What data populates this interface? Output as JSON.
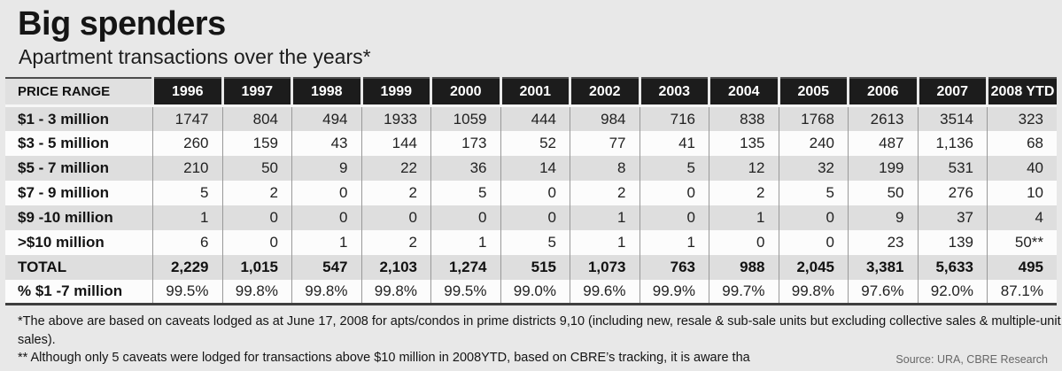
{
  "chart_data": {
    "type": "table",
    "title": "Big spenders",
    "subtitle": "Apartment transactions over the years*",
    "columns": [
      "PRICE RANGE",
      "1996",
      "1997",
      "1998",
      "1999",
      "2000",
      "2001",
      "2002",
      "2003",
      "2004",
      "2005",
      "2006",
      "2007",
      "2008 YTD"
    ],
    "rows": [
      {
        "label": "$1 - 3 million",
        "values": [
          "1747",
          "804",
          "494",
          "1933",
          "1059",
          "444",
          "984",
          "716",
          "838",
          "1768",
          "2613",
          "3514",
          "323"
        ]
      },
      {
        "label": "$3 - 5 million",
        "values": [
          "260",
          "159",
          "43",
          "144",
          "173",
          "52",
          "77",
          "41",
          "135",
          "240",
          "487",
          "1,136",
          "68"
        ]
      },
      {
        "label": "$5 - 7 million",
        "values": [
          "210",
          "50",
          "9",
          "22",
          "36",
          "14",
          "8",
          "5",
          "12",
          "32",
          "199",
          "531",
          "40"
        ]
      },
      {
        "label": "$7 - 9 million",
        "values": [
          "5",
          "2",
          "0",
          "2",
          "5",
          "0",
          "2",
          "0",
          "2",
          "5",
          "50",
          "276",
          "10"
        ]
      },
      {
        "label": "$9 -10 million",
        "values": [
          "1",
          "0",
          "0",
          "0",
          "0",
          "0",
          "1",
          "0",
          "1",
          "0",
          "9",
          "37",
          "4"
        ]
      },
      {
        "label": ">$10 million",
        "values": [
          "6",
          "0",
          "1",
          "2",
          "1",
          "5",
          "1",
          "1",
          "0",
          "0",
          "23",
          "139",
          "50**"
        ]
      },
      {
        "label": "TOTAL",
        "bold": true,
        "values": [
          "2,229",
          "1,015",
          "547",
          "2,103",
          "1,274",
          "515",
          "1,073",
          "763",
          "988",
          "2,045",
          "3,381",
          "5,633",
          "495"
        ]
      },
      {
        "label": "% $1 -7 million",
        "values": [
          "99.5%",
          "99.8%",
          "99.8%",
          "99.8%",
          "99.5%",
          "99.0%",
          "99.6%",
          "99.9%",
          "99.7%",
          "99.8%",
          "97.6%",
          "92.0%",
          "87.1%"
        ]
      }
    ],
    "footnotes": [
      "*The above are based on caveats lodged as at June 17, 2008 for apts/condos in prime districts 9,10 (including new, resale & sub-sale units but excluding collective sales & multiple-unit sales).",
      "** Although only 5 caveats were lodged for transactions above $10 million in 2008YTD, based on CBRE’s tracking, it is aware tha"
    ],
    "source": "Source: URA, CBRE Research",
    "colors": {
      "header_bg": "#1c1c1c",
      "header_text": "#ffffff",
      "shaded_row": "#dedede",
      "plain_row": "#fcfcfc",
      "page_bg": "#e8e8e8"
    }
  }
}
